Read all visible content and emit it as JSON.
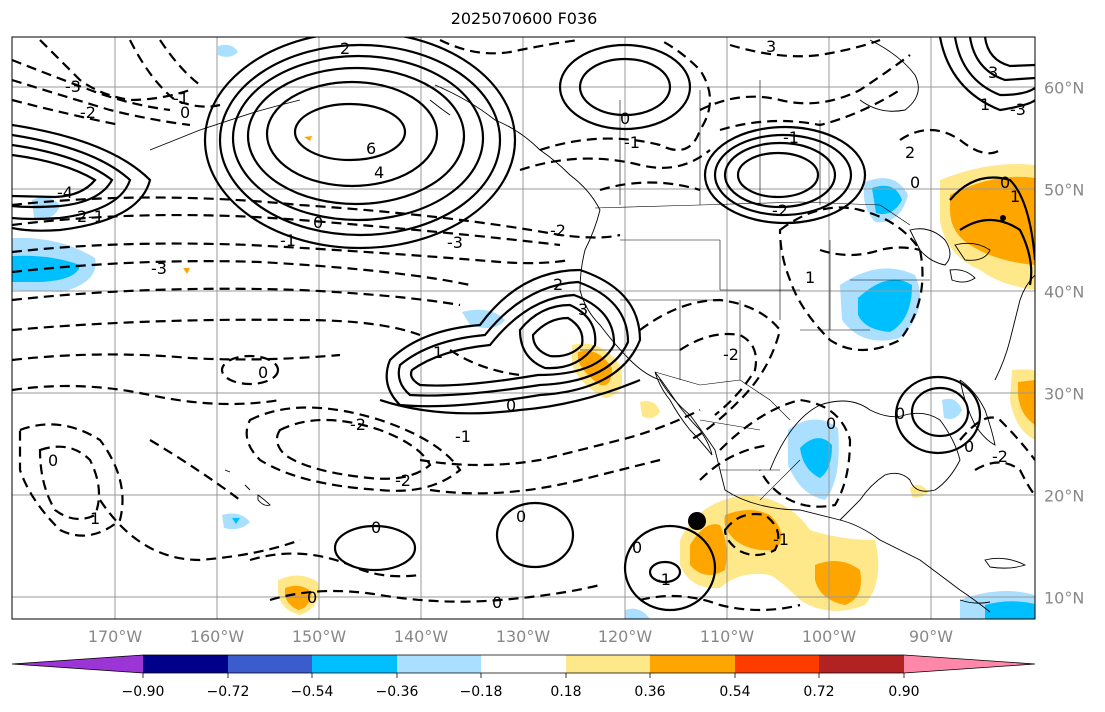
{
  "title": "2025070600 F036",
  "lon_ticks": [
    "170°W",
    "160°W",
    "150°W",
    "140°W",
    "130°W",
    "120°W",
    "110°W",
    "100°W",
    "90°W"
  ],
  "lat_ticks": [
    "60°N",
    "50°N",
    "40°N",
    "30°N",
    "20°N",
    "10°N"
  ],
  "colorbar": {
    "labels": [
      "−0.90",
      "−0.72",
      "−0.54",
      "−0.36",
      "−0.18",
      "0.18",
      "0.36",
      "0.54",
      "0.72",
      "0.90"
    ],
    "colors": [
      "#9b35d6",
      "#00008b",
      "#3a5ccc",
      "#00bfff",
      "#aadfff",
      "#ffffff",
      "#ffe88a",
      "#ffa500",
      "#ff3c00",
      "#b22222",
      "#ff88aa"
    ]
  },
  "contour_labels": [
    "2",
    "3",
    "0",
    "-2",
    "6",
    "4",
    "-4",
    "2",
    "-1",
    "-3",
    "-1",
    "0",
    "-3",
    "1",
    "0",
    "-2",
    "-1",
    "0",
    "0",
    "-3",
    "-2",
    "2",
    "0",
    "-1",
    "-2",
    "0",
    "1",
    "0",
    "-2",
    "0",
    "1",
    "-1",
    "0",
    "-1",
    "0",
    "0",
    "-1",
    "-2",
    "3",
    "1",
    "3",
    "-3",
    "0",
    "1",
    "2",
    "0",
    "-2",
    "0",
    "0",
    "-1"
  ],
  "colors": {
    "fill_neg_light": "#aadfff",
    "fill_neg_mid": "#00bfff",
    "fill_pos_light": "#ffe88a",
    "fill_pos_mid": "#ffa500"
  }
}
